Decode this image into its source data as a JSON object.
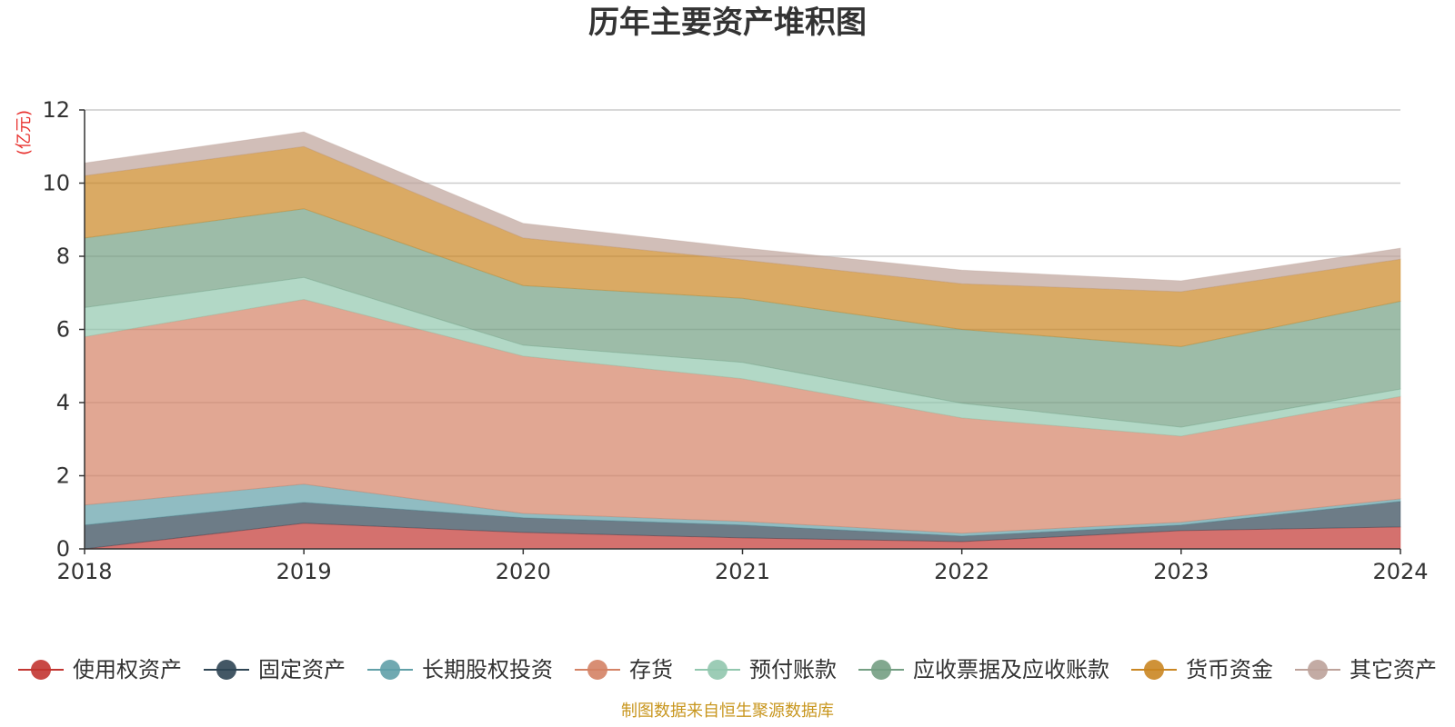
{
  "chart_data": {
    "type": "area",
    "stacked": true,
    "title": "历年主要资产堆积图",
    "unit_label": "(亿元)",
    "x": [
      "2018",
      "2019",
      "2020",
      "2021",
      "2022",
      "2023",
      "2024"
    ],
    "ylim": [
      0,
      12
    ],
    "yticks": [
      "0",
      "2",
      "4",
      "6",
      "8",
      "10",
      "12"
    ],
    "grid": true,
    "legend_position": "bottom",
    "series": [
      {
        "name": "使用权资产",
        "color": "#c23531",
        "values": [
          0.0,
          0.7,
          0.45,
          0.3,
          0.2,
          0.5,
          0.6
        ]
      },
      {
        "name": "固定资产",
        "color": "#2f4554",
        "values": [
          0.65,
          0.57,
          0.4,
          0.35,
          0.15,
          0.15,
          0.7
        ]
      },
      {
        "name": "长期股权投资",
        "color": "#61a0a8",
        "values": [
          0.55,
          0.5,
          0.12,
          0.1,
          0.08,
          0.08,
          0.07
        ]
      },
      {
        "name": "存货",
        "color": "#d48265",
        "values": [
          4.6,
          5.05,
          4.3,
          3.9,
          3.15,
          2.35,
          2.8
        ]
      },
      {
        "name": "预付账款",
        "color": "#91c7ae",
        "values": [
          0.8,
          0.6,
          0.3,
          0.45,
          0.4,
          0.25,
          0.2
        ]
      },
      {
        "name": "应收票据及应收账款",
        "color": "#749f83",
        "values": [
          1.9,
          1.88,
          1.63,
          1.75,
          2.02,
          2.2,
          2.4
        ]
      },
      {
        "name": "货币资金",
        "color": "#ca8622",
        "values": [
          1.7,
          1.7,
          1.3,
          1.05,
          1.25,
          1.5,
          1.15
        ]
      },
      {
        "name": "其它资产",
        "color": "#bda29a",
        "values": [
          0.35,
          0.4,
          0.4,
          0.33,
          0.37,
          0.3,
          0.3
        ]
      }
    ]
  },
  "footer": {
    "source": "制图数据来自恒生聚源数据库"
  }
}
